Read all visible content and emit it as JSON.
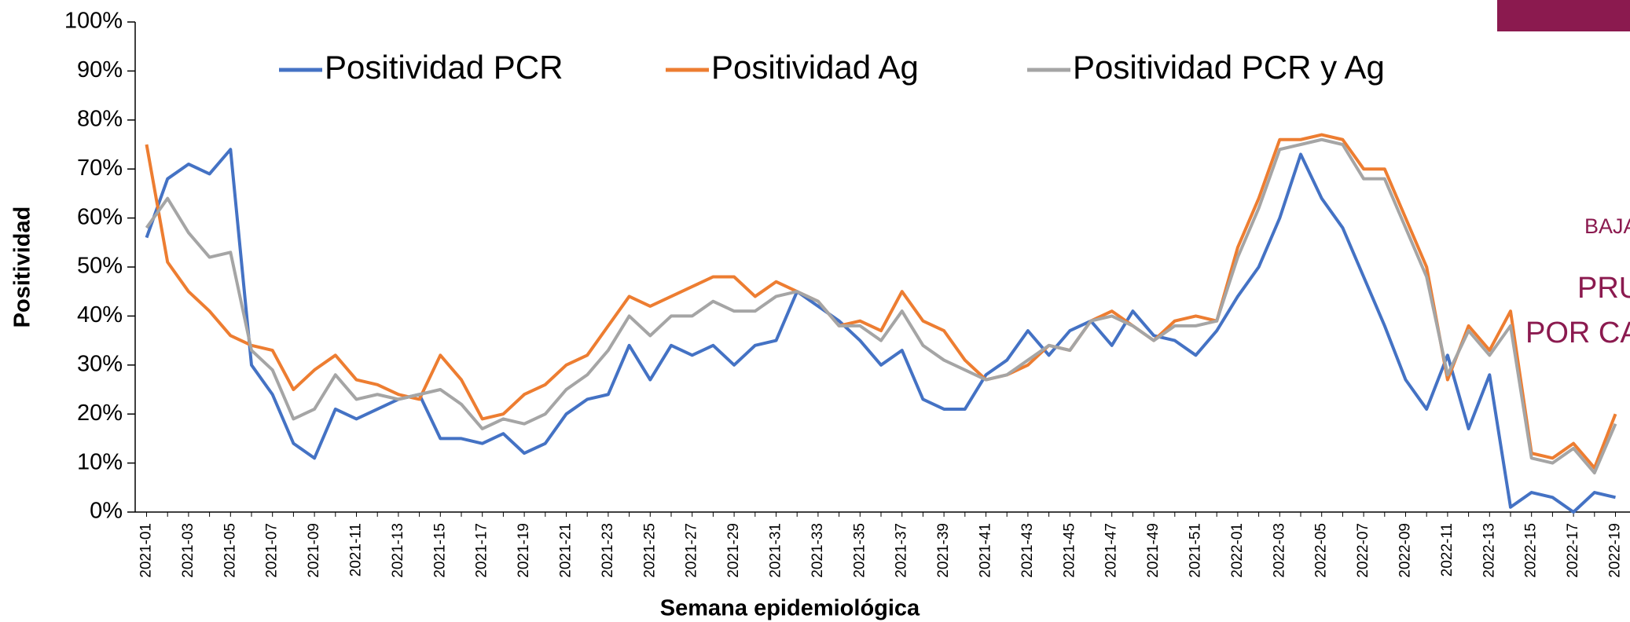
{
  "chart_data": {
    "type": "line",
    "y_label": "Positividad",
    "x_label": "Semana epidemiológica",
    "categories": [
      "2021-01",
      null,
      "2021-03",
      null,
      "2021-05",
      null,
      "2021-07",
      null,
      "2021-09",
      null,
      "2021-11",
      null,
      "2021-13",
      null,
      "2021-15",
      null,
      "2021-17",
      null,
      "2021-19",
      null,
      "2021-21",
      null,
      "2021-23",
      null,
      "2021-25",
      null,
      "2021-27",
      null,
      "2021-29",
      null,
      "2021-31",
      null,
      "2021-33",
      null,
      "2021-35",
      null,
      "2021-37",
      null,
      "2021-39",
      null,
      "2021-41",
      null,
      "2021-43",
      null,
      "2021-45",
      null,
      "2021-47",
      null,
      "2021-49",
      null,
      "2021-51",
      null,
      "2022-01",
      null,
      "2022-03",
      null,
      "2022-05",
      null,
      "2022-07",
      null,
      "2022-09",
      null,
      "2022-11",
      null,
      "2022-13",
      null,
      "2022-15",
      null,
      "2022-17",
      null,
      "2022-19"
    ],
    "series": [
      {
        "name": "Positividad PCR",
        "color": "#4472c4",
        "values": [
          56,
          68,
          71,
          69,
          74,
          30,
          24,
          14,
          11,
          21,
          19,
          21,
          23,
          24,
          15,
          15,
          14,
          16,
          12,
          14,
          20,
          23,
          24,
          34,
          27,
          34,
          32,
          34,
          30,
          34,
          35,
          45,
          42,
          39,
          35,
          30,
          33,
          23,
          21,
          21,
          28,
          31,
          37,
          32,
          37,
          39,
          34,
          41,
          36,
          35,
          32,
          37,
          44,
          50,
          60,
          73,
          64,
          58,
          48,
          38,
          27,
          21,
          32,
          17,
          28,
          1,
          4,
          3,
          0,
          4,
          3
        ]
      },
      {
        "name": "Positividad Ag",
        "color": "#ed7d31",
        "values": [
          75,
          51,
          45,
          41,
          36,
          34,
          33,
          25,
          29,
          32,
          27,
          26,
          24,
          23,
          32,
          27,
          19,
          20,
          24,
          26,
          30,
          32,
          38,
          44,
          42,
          44,
          46,
          48,
          48,
          44,
          47,
          45,
          43,
          38,
          39,
          37,
          45,
          39,
          37,
          31,
          27,
          28,
          30,
          34,
          33,
          39,
          41,
          38,
          35,
          39,
          40,
          39,
          54,
          64,
          76,
          76,
          77,
          76,
          70,
          70,
          60,
          50,
          27,
          38,
          33,
          41,
          12,
          11,
          14,
          9,
          20
        ]
      },
      {
        "name": "Positividad PCR y Ag",
        "color": "#a5a5a5",
        "values": [
          58,
          64,
          57,
          52,
          53,
          33,
          29,
          19,
          21,
          28,
          23,
          24,
          23,
          24,
          25,
          22,
          17,
          19,
          18,
          20,
          25,
          28,
          33,
          40,
          36,
          40,
          40,
          43,
          41,
          41,
          44,
          45,
          43,
          38,
          38,
          35,
          41,
          34,
          31,
          29,
          27,
          28,
          31,
          34,
          33,
          39,
          40,
          38,
          35,
          38,
          38,
          39,
          52,
          62,
          74,
          75,
          76,
          75,
          68,
          68,
          58,
          48,
          28,
          37,
          32,
          38,
          11,
          10,
          13,
          8,
          18
        ]
      }
    ],
    "ylim": [
      0,
      100
    ],
    "yticks": [
      {
        "value": 0,
        "label": "0%"
      },
      {
        "value": 10,
        "label": "10%"
      },
      {
        "value": 20,
        "label": "20%"
      },
      {
        "value": 30,
        "label": "30%"
      },
      {
        "value": 40,
        "label": "40%"
      },
      {
        "value": 50,
        "label": "50%"
      },
      {
        "value": 60,
        "label": "60%"
      },
      {
        "value": 70,
        "label": "70%"
      },
      {
        "value": 80,
        "label": "80%"
      },
      {
        "value": 90,
        "label": "90%"
      },
      {
        "value": 100,
        "label": "100%"
      }
    ],
    "grid": false,
    "legend": "top",
    "annotations": [
      "BAJA",
      "PRU",
      "POR CA"
    ]
  }
}
